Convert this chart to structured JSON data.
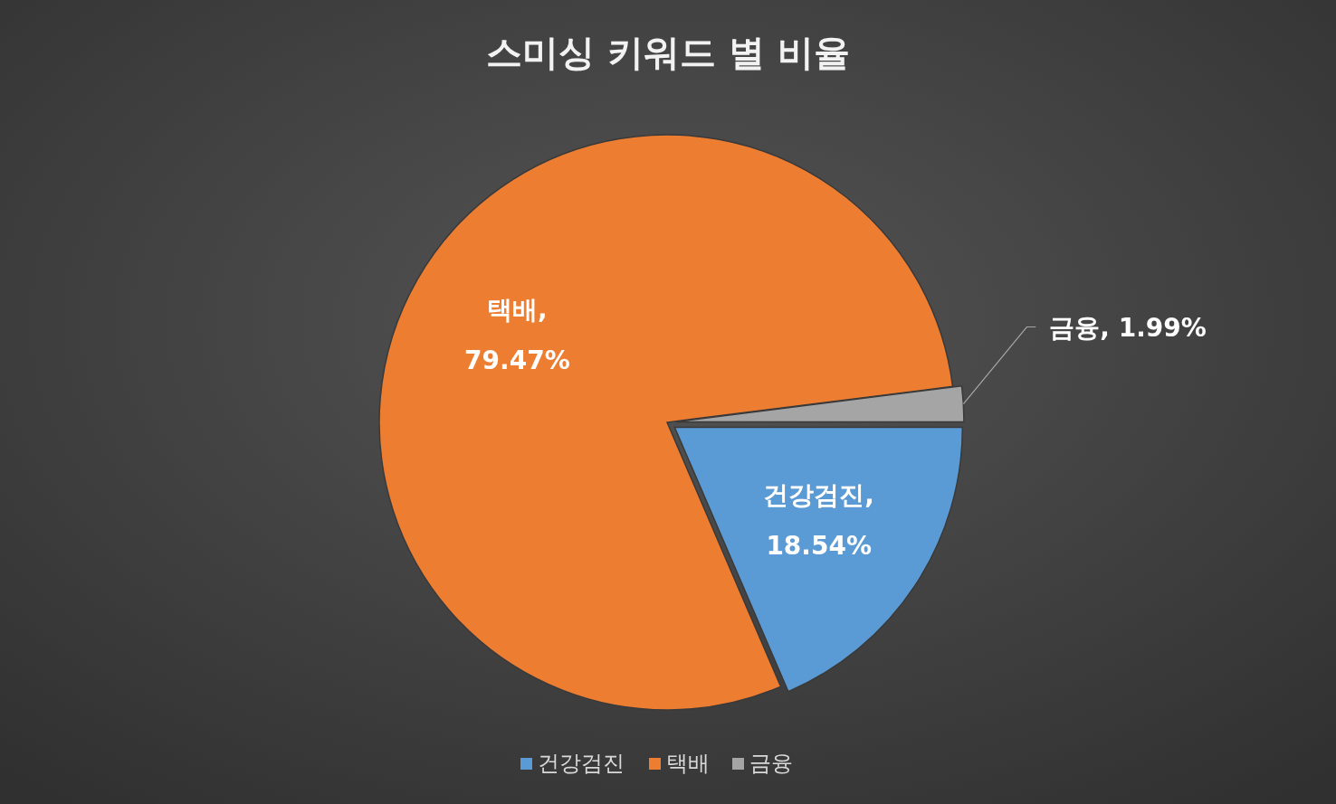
{
  "chart_data": {
    "type": "pie",
    "title": "스미싱 키워드 별 비율",
    "categories": [
      "건강검진",
      "택배",
      "금융"
    ],
    "values": [
      18.54,
      79.47,
      1.99
    ],
    "colors": [
      "#5b9bd5",
      "#ed7d31",
      "#a5a5a5"
    ],
    "value_labels": [
      "건강검진, 18.54%",
      "택배, 79.47%",
      "금융, 1.99%"
    ],
    "legend": "bottom"
  }
}
